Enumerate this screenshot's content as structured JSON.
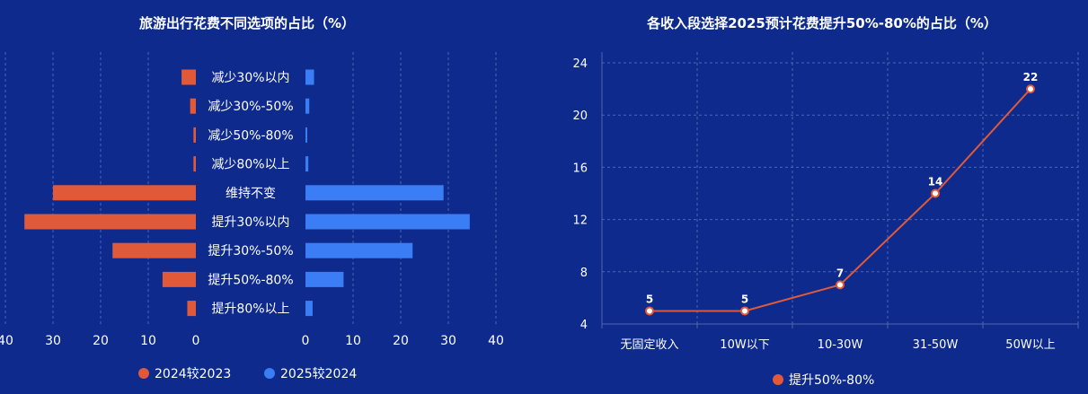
{
  "colors": {
    "background": "#0d2a8c",
    "series_2024": "#e05a3a",
    "series_2025": "#3a7df5",
    "line": "#e05a3a",
    "grid": "#4f66b5",
    "text": "#ffffff"
  },
  "chart_data": [
    {
      "type": "bar",
      "orientation": "horizontal-butterfly",
      "title": "旅游出行花费不同选项的占比（%）",
      "categories": [
        "减少30%以内",
        "减少30%-50%",
        "减少50%-80%",
        "减少80%以上",
        "维持不变",
        "提升30%以内",
        "提升30%-50%",
        "提升50%-80%",
        "提升80%以上"
      ],
      "series": [
        {
          "name": "2024较2023",
          "values": [
            3,
            1.2,
            0.5,
            0.5,
            30,
            36,
            17.5,
            7,
            1.8
          ]
        },
        {
          "name": "2025较2024",
          "values": [
            1.8,
            0.8,
            0.3,
            0.6,
            29,
            34.5,
            22.5,
            8,
            1.5
          ]
        }
      ],
      "xlim": [
        0,
        40
      ],
      "left_ticks": [
        "40",
        "30",
        "20",
        "10",
        "0"
      ],
      "right_ticks": [
        "0",
        "10",
        "20",
        "30",
        "40"
      ],
      "grid": true,
      "legend": "bottom"
    },
    {
      "type": "line",
      "title": "各收入段选择2025预计花费提升50%-80%的占比（%）",
      "categories": [
        "无固定收入",
        "10W以下",
        "10-30W",
        "31-50W",
        "50W以上"
      ],
      "series": [
        {
          "name": "提升50%-80%",
          "values": [
            5,
            5,
            7,
            14,
            22
          ],
          "labels": [
            "5",
            "5",
            "7",
            "14",
            "22"
          ]
        }
      ],
      "ylim": [
        4,
        24
      ],
      "yticks": [
        "4",
        "8",
        "12",
        "16",
        "20",
        "24"
      ],
      "grid": true,
      "legend": "bottom"
    }
  ]
}
